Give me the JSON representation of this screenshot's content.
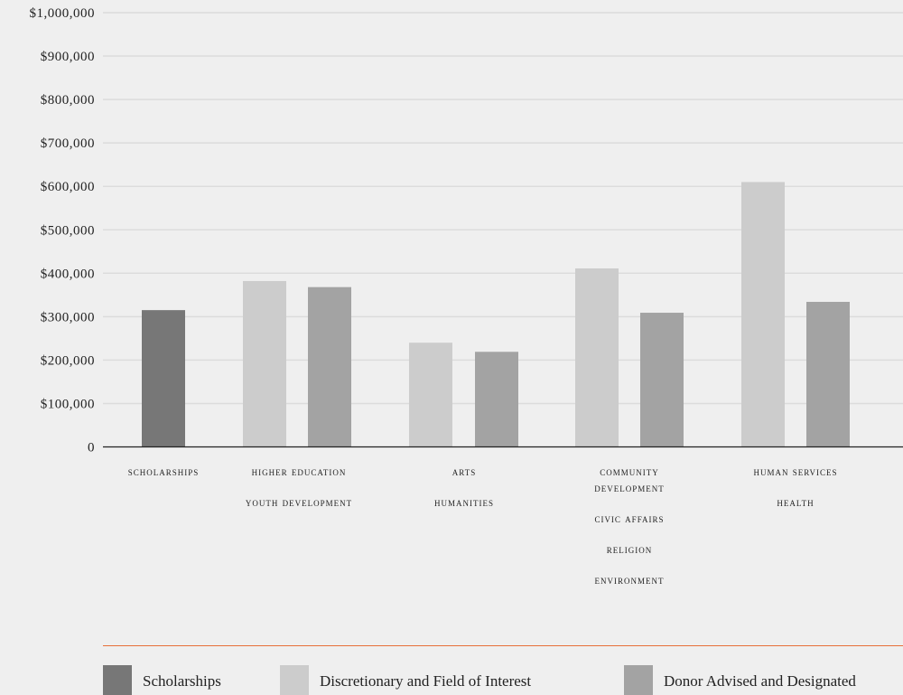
{
  "chart_data": {
    "type": "bar",
    "ylim": [
      0,
      1000000
    ],
    "y_ticks": [
      {
        "value": 0,
        "label": "0"
      },
      {
        "value": 100000,
        "label": "$100,000"
      },
      {
        "value": 200000,
        "label": "$200,000"
      },
      {
        "value": 300000,
        "label": "$300,000"
      },
      {
        "value": 400000,
        "label": "$400,000"
      },
      {
        "value": 500000,
        "label": "$500,000"
      },
      {
        "value": 600000,
        "label": "$600,000"
      },
      {
        "value": 700000,
        "label": "$700,000"
      },
      {
        "value": 800000,
        "label": "$800,000"
      },
      {
        "value": 900000,
        "label": "$900,000"
      },
      {
        "value": 1000000,
        "label": "$1,000,000"
      }
    ],
    "grid": true,
    "legend_placement": "bottom",
    "series": [
      {
        "name": "Scholarships",
        "color": "#777777"
      },
      {
        "name": "Discretionary and Field of Interest",
        "color": "#cccccc"
      },
      {
        "name": "Donor Advised and Designated",
        "color": "#a3a3a3"
      }
    ],
    "groups": [
      {
        "labels": [
          "Scholarships"
        ],
        "bars": [
          {
            "series": 0,
            "value": 315000
          }
        ]
      },
      {
        "labels": [
          "Higher Education",
          "Youth Development"
        ],
        "bars": [
          {
            "series": 1,
            "value": 382000
          },
          {
            "series": 2,
            "value": 368000
          }
        ]
      },
      {
        "labels": [
          "Arts",
          "Humanities"
        ],
        "bars": [
          {
            "series": 1,
            "value": 240000
          },
          {
            "series": 2,
            "value": 219000
          }
        ]
      },
      {
        "labels": [
          "Community Development",
          "Civic Affairs",
          "Religion",
          "Environment"
        ],
        "bars": [
          {
            "series": 1,
            "value": 411000
          },
          {
            "series": 2,
            "value": 309000
          }
        ]
      },
      {
        "labels": [
          "Human Services",
          "Health"
        ],
        "bars": [
          {
            "series": 1,
            "value": 610000
          },
          {
            "series": 2,
            "value": 334000
          }
        ]
      }
    ]
  }
}
